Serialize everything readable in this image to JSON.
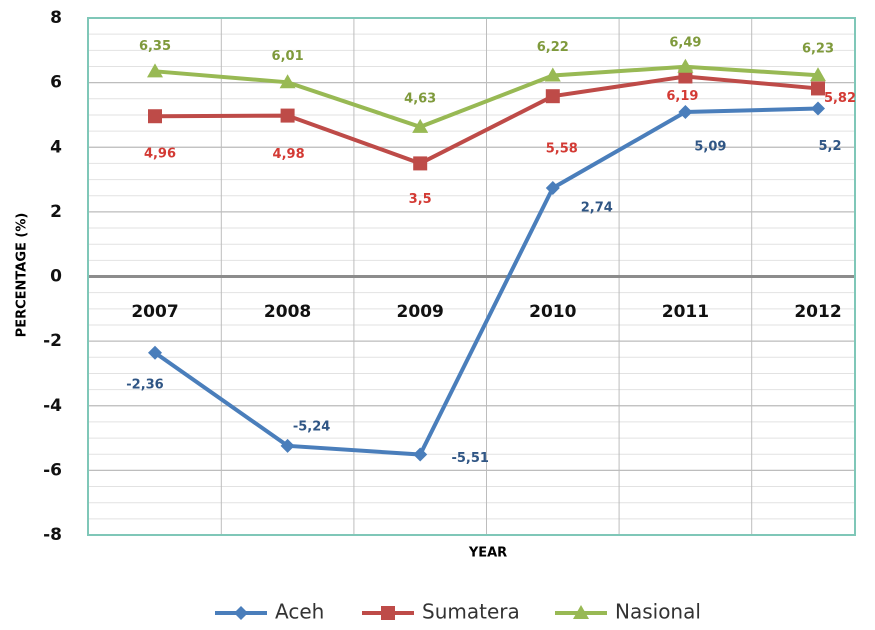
{
  "chart_data": {
    "type": "line",
    "categories": [
      "2007",
      "2008",
      "2009",
      "2010",
      "2011",
      "2012"
    ],
    "series": [
      {
        "name": "Aceh",
        "color": "#4a7ebb",
        "marker": "diamond",
        "values": [
          -2.36,
          -5.24,
          -5.51,
          2.74,
          5.09,
          5.2
        ],
        "value_labels": [
          "-2,36",
          "-5,24",
          "-5,51",
          "2,74",
          "5,09",
          "5,2"
        ]
      },
      {
        "name": "Sumatera",
        "color": "#be4b48",
        "marker": "square",
        "values": [
          4.96,
          4.98,
          3.5,
          5.58,
          6.19,
          5.82
        ],
        "value_labels": [
          "4,96",
          "4,98",
          "3,5",
          "5,58",
          "6,19",
          "5,82"
        ]
      },
      {
        "name": "Nasional",
        "color": "#98b954",
        "marker": "triangle",
        "values": [
          6.35,
          6.01,
          4.63,
          6.22,
          6.49,
          6.23
        ],
        "value_labels": [
          "6,35",
          "6,01",
          "4,63",
          "6,22",
          "6,49",
          "6,23"
        ]
      }
    ],
    "ylim": [
      -8,
      8
    ],
    "yticks": [
      -8,
      -6,
      -4,
      -2,
      0,
      2,
      4,
      6,
      8
    ],
    "y_label": "PERCENTAGE (%)",
    "x_label": "YEAR",
    "grid": true,
    "legend": "bottom"
  }
}
